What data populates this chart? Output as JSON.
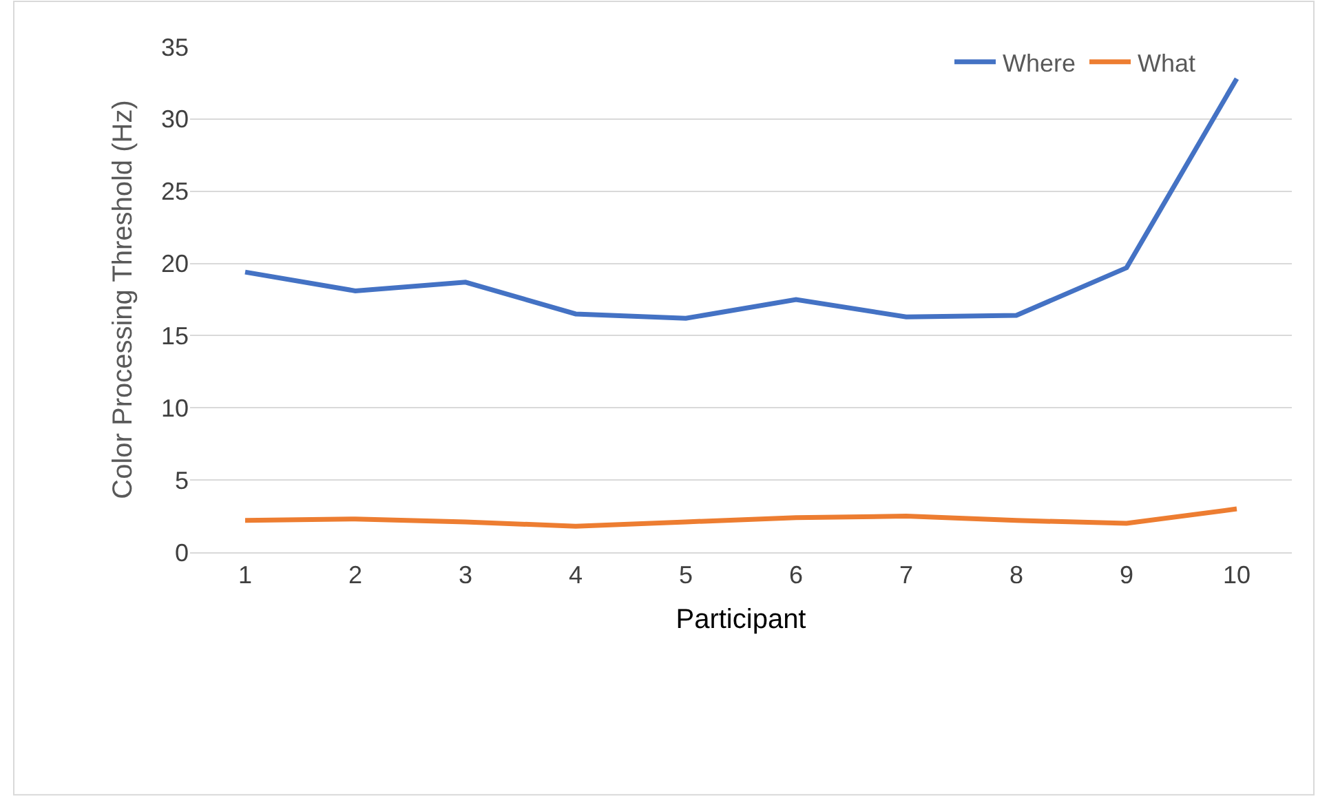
{
  "chart_data": {
    "type": "line",
    "xlabel": "Participant",
    "ylabel": "Color Processing Threshold (Hz)",
    "categories": [
      "1",
      "2",
      "3",
      "4",
      "5",
      "6",
      "7",
      "8",
      "9",
      "10"
    ],
    "series": [
      {
        "name": "Where",
        "color": "#4472c4",
        "values": [
          19.4,
          18.1,
          18.7,
          16.5,
          16.2,
          17.5,
          16.3,
          16.4,
          19.7,
          32.8
        ]
      },
      {
        "name": "What",
        "color": "#ed7d31",
        "values": [
          2.2,
          2.3,
          2.1,
          1.8,
          2.1,
          2.4,
          2.5,
          2.2,
          2.0,
          3.0
        ]
      }
    ],
    "ylim": [
      0,
      35
    ],
    "yticks": [
      0,
      5,
      10,
      15,
      20,
      25,
      30,
      35
    ],
    "grid": "y",
    "legend": "top right",
    "marker": "none",
    "line_style": "solid"
  }
}
